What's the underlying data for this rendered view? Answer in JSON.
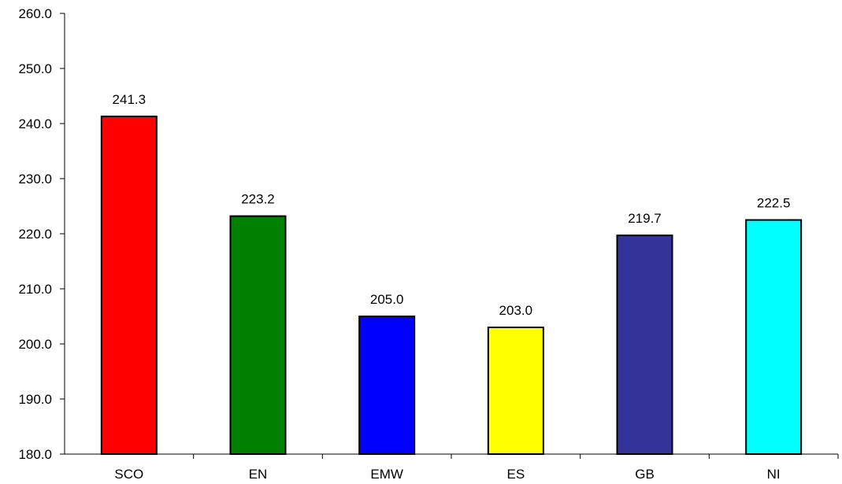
{
  "chart_data": {
    "type": "bar",
    "categories": [
      "SCO",
      "EN",
      "EMW",
      "ES",
      "GB",
      "NI"
    ],
    "values": [
      241.3,
      223.2,
      205.0,
      203.0,
      219.7,
      222.5
    ],
    "value_labels": [
      "241.3",
      "223.2",
      "205.0",
      "203.0",
      "219.7",
      "222.5"
    ],
    "colors": [
      "#ff0000",
      "#008000",
      "#0000ff",
      "#ffff00",
      "#333399",
      "#00ffff"
    ],
    "ylim": [
      180,
      260
    ],
    "yticks": [
      "180.0",
      "190.0",
      "200.0",
      "210.0",
      "220.0",
      "230.0",
      "240.0",
      "250.0",
      "260.0"
    ],
    "title": "",
    "xlabel": "",
    "ylabel": "",
    "grid": false,
    "legend": "none"
  }
}
